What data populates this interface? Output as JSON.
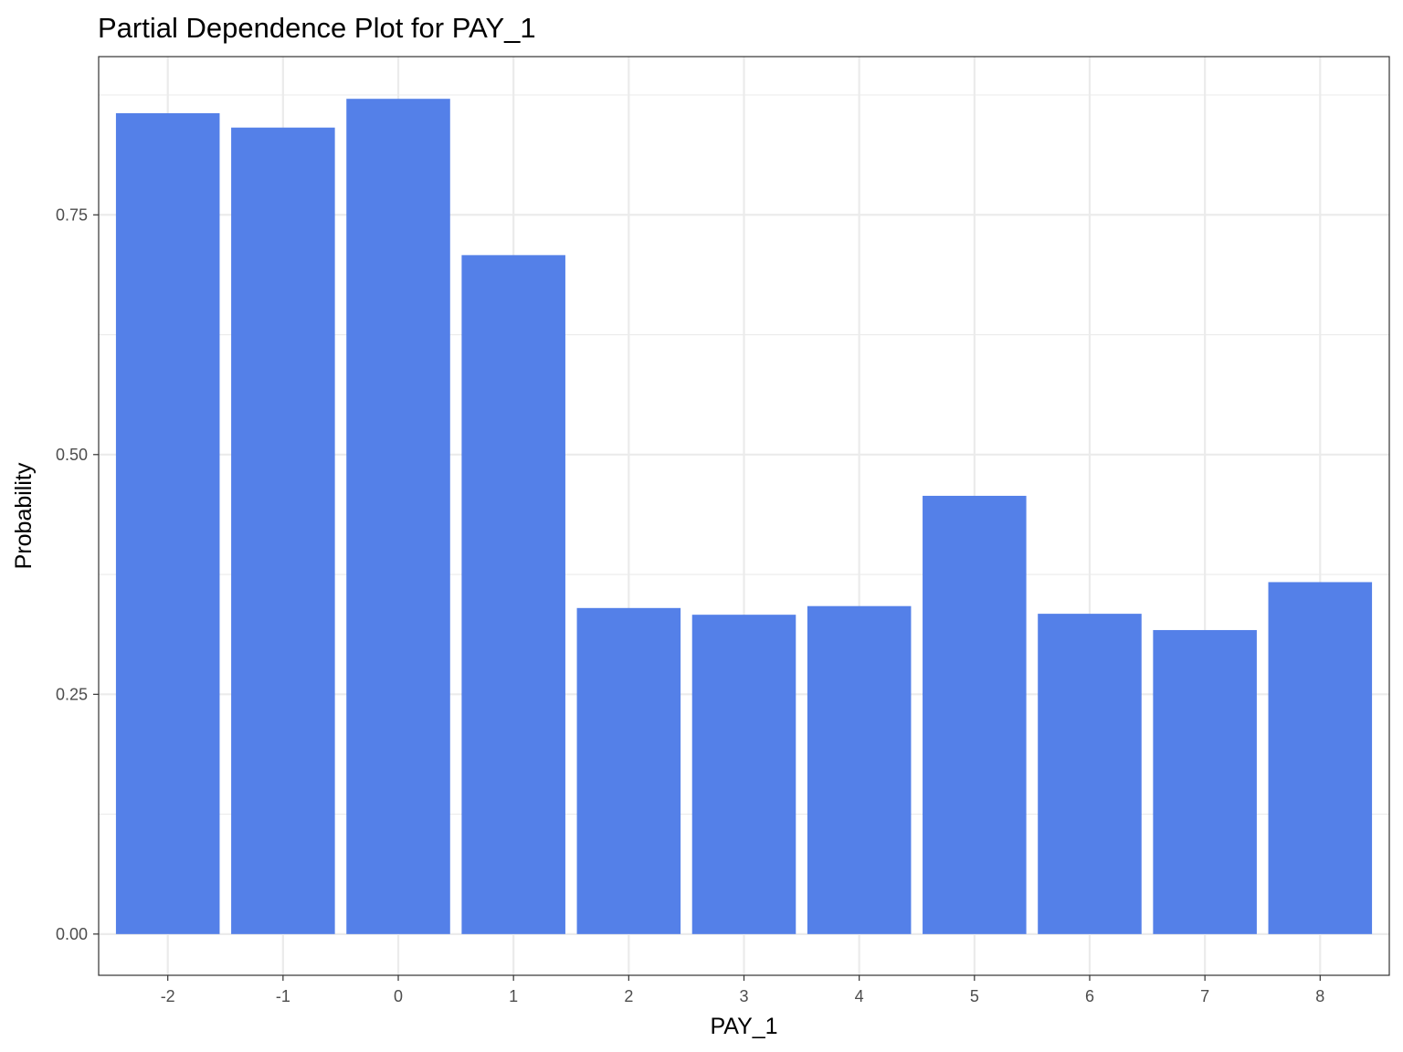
{
  "chart_data": {
    "type": "bar",
    "title": "Partial Dependence Plot for PAY_1",
    "xlabel": "PAY_1",
    "ylabel": "Probability",
    "categories": [
      "-2",
      "-1",
      "0",
      "1",
      "2",
      "3",
      "4",
      "5",
      "6",
      "7",
      "8"
    ],
    "values": [
      0.856,
      0.841,
      0.871,
      0.708,
      0.34,
      0.333,
      0.342,
      0.457,
      0.334,
      0.317,
      0.367
    ],
    "ylim": [
      -0.043,
      0.915
    ],
    "yticks": [
      0.0,
      0.25,
      0.5,
      0.75
    ],
    "ytick_labels": [
      "0.00",
      "0.25",
      "0.50",
      "0.75"
    ],
    "grid": true,
    "legend": "none",
    "colors": {
      "bar": "#5480e8",
      "grid": "#ebebeb",
      "panel_border": "#333333",
      "tick_label": "#4d4d4d"
    }
  }
}
